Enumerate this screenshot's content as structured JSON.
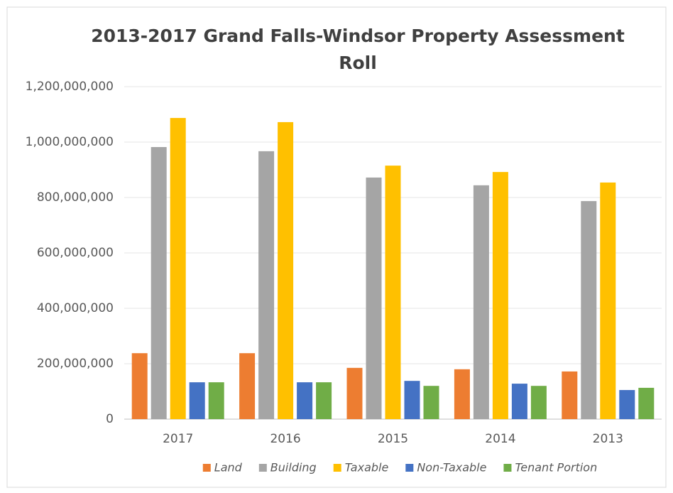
{
  "chart_data": {
    "type": "bar",
    "title": "2013-2017 Grand Falls-Windsor Property Assessment Roll",
    "categories": [
      "2017",
      "2016",
      "2015",
      "2014",
      "2013"
    ],
    "series": [
      {
        "name": "Land",
        "color": "#ed7d31",
        "values": [
          238000000,
          238000000,
          185000000,
          180000000,
          172000000
        ]
      },
      {
        "name": "Building",
        "color": "#a5a5a5",
        "values": [
          982000000,
          967000000,
          872000000,
          844000000,
          787000000
        ]
      },
      {
        "name": "Taxable",
        "color": "#ffc000",
        "values": [
          1087000000,
          1072000000,
          915000000,
          892000000,
          854000000
        ]
      },
      {
        "name": "Non-Taxable",
        "color": "#4472c4",
        "values": [
          133000000,
          133000000,
          138000000,
          128000000,
          105000000
        ]
      },
      {
        "name": "Tenant Portion",
        "color": "#70ad47",
        "values": [
          133000000,
          133000000,
          120000000,
          120000000,
          113000000
        ]
      }
    ],
    "ylim": [
      0,
      1200000000
    ],
    "yticks": [
      0,
      {
        "value": 200000000,
        "label": "200,000,000"
      },
      {
        "value": 400000000,
        "label": "400,000,000"
      },
      {
        "value": 600000000,
        "label": "600,000,000"
      },
      {
        "value": 800000000,
        "label": "800,000,000"
      },
      {
        "value": 1000000000,
        "label": "1,000,000,000"
      },
      {
        "value": 1200000000,
        "label": "1,200,000,000"
      }
    ],
    "grid": true,
    "legend": "bottom"
  }
}
